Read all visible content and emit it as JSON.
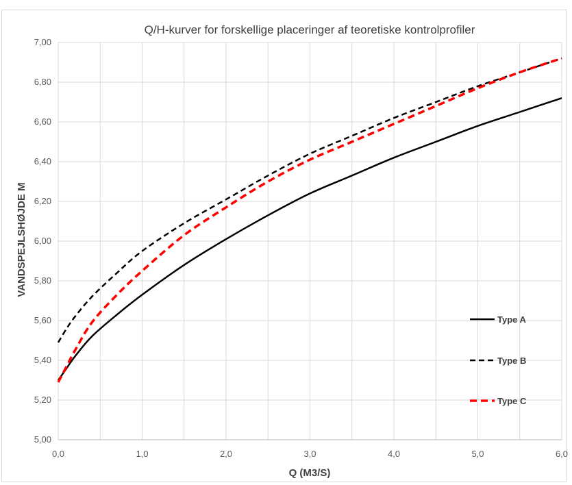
{
  "chart_data": {
    "type": "line",
    "title": "Q/H-kurver for forskellige placeringer af teoretiske kontrolprofiler",
    "xlabel": "Q (M3/S)",
    "ylabel": "VANDSPEJLSHØJDE M",
    "xlim": [
      0,
      6
    ],
    "ylim": [
      5.0,
      7.0
    ],
    "x_ticks": [
      "0,0",
      "1,0",
      "2,0",
      "3,0",
      "4,0",
      "5,0",
      "6,0"
    ],
    "y_ticks": [
      "5,00",
      "5,20",
      "5,40",
      "5,60",
      "5,80",
      "6,00",
      "6,20",
      "6,40",
      "6,60",
      "6,80",
      "7,00"
    ],
    "grid": true,
    "legend_position": "right",
    "series": [
      {
        "name": "Type A",
        "style": "solid",
        "color": "#000000",
        "x": [
          0,
          0.1,
          0.2,
          0.4,
          0.7,
          1.0,
          1.5,
          2.0,
          2.5,
          3.0,
          3.5,
          4.0,
          4.5,
          5.0,
          5.5,
          6.0
        ],
        "y": [
          5.3,
          5.36,
          5.42,
          5.52,
          5.63,
          5.73,
          5.88,
          6.01,
          6.13,
          6.24,
          6.33,
          6.42,
          6.5,
          6.58,
          6.65,
          6.72
        ]
      },
      {
        "name": "Type B",
        "style": "dashed",
        "color": "#000000",
        "x": [
          0,
          0.1,
          0.2,
          0.4,
          0.7,
          1.0,
          1.5,
          2.0,
          2.5,
          3.0,
          3.5,
          4.0,
          4.5,
          5.0,
          5.5,
          6.0
        ],
        "y": [
          5.49,
          5.56,
          5.62,
          5.72,
          5.84,
          5.95,
          6.09,
          6.21,
          6.33,
          6.44,
          6.53,
          6.62,
          6.7,
          6.78,
          6.85,
          6.92
        ]
      },
      {
        "name": "Type C",
        "style": "dashed",
        "color": "#ff0000",
        "x": [
          0,
          0.1,
          0.2,
          0.4,
          0.7,
          1.0,
          1.5,
          2.0,
          2.5,
          3.0,
          3.5,
          4.0,
          4.5,
          5.0,
          5.5,
          6.0
        ],
        "y": [
          5.29,
          5.37,
          5.45,
          5.59,
          5.73,
          5.85,
          6.03,
          6.17,
          6.3,
          6.41,
          6.5,
          6.59,
          6.68,
          6.77,
          6.85,
          6.92
        ]
      }
    ]
  }
}
